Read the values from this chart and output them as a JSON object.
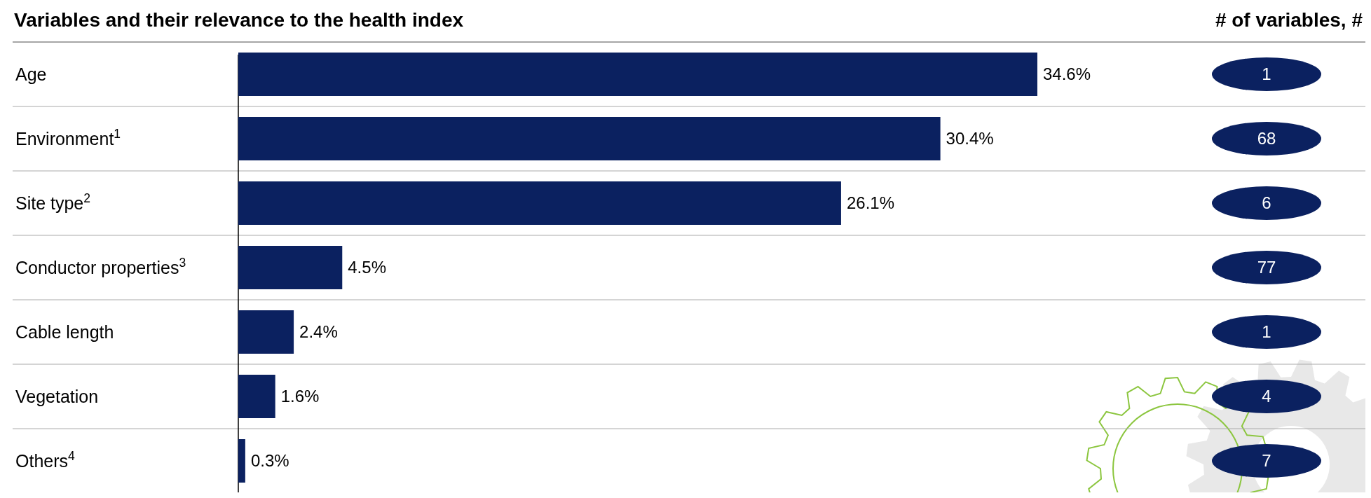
{
  "chart_data": {
    "type": "bar",
    "orientation": "horizontal",
    "title": "Variables and their relevance to the health index",
    "categories": [
      "Age",
      "Environment$^{1}$",
      "Site type$^{2}$",
      "Conductor properties$^{3}$",
      "Cable length",
      "Vegetation",
      "Others$^{4}$"
    ],
    "values": [
      34.6,
      30.4,
      26.1,
      4.5,
      2.4,
      1.6,
      0.3
    ],
    "value_labels": [
      "34.6%",
      "30.4%",
      "26.1%",
      "4.5%",
      "2.4%",
      "1.6%",
      "0.3%"
    ],
    "color": "#0b2160",
    "annotations": [
      "# of variables, #",
      "1",
      "68",
      "6",
      "77",
      "1",
      "4",
      "7"
    ]
  }
}
